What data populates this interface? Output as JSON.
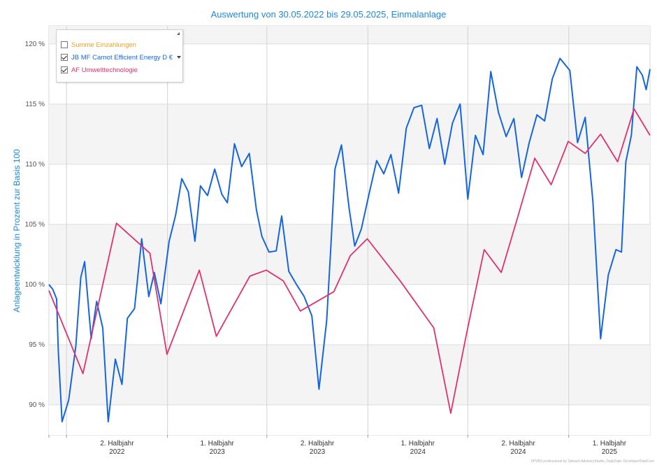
{
  "chart_data": {
    "type": "line",
    "title": "Auswertung von 30.05.2022 bis 29.05.2025, Einmalanlage",
    "ylabel": "Anlageentwicklung  in Prozent zur Basis 100",
    "ylim": [
      87.5,
      121.5
    ],
    "y_ticks": [
      90,
      95,
      100,
      105,
      110,
      115,
      120
    ],
    "y_tick_labels": [
      "90 %",
      "95 %",
      "100 %",
      "105 %",
      "110 %",
      "115 %",
      "120 %"
    ],
    "xlim": [
      "2022-05-30",
      "2025-05-29"
    ],
    "x_period_labels": [
      {
        "l1": "2. Halbjahr",
        "l2": "2022"
      },
      {
        "l1": "1. Halbjahr",
        "l2": "2023"
      },
      {
        "l1": "2. Halbjahr",
        "l2": "2023"
      },
      {
        "l1": "1. Halbjahr",
        "l2": "2024"
      },
      {
        "l1": "2. Halbjahr",
        "l2": "2024"
      },
      {
        "l1": "1. Halbjahr",
        "l2": "2025"
      }
    ],
    "grid": true,
    "legend_position": "top-left",
    "series": [
      {
        "name": "Summe Einzahlungen",
        "color": "#f0a020",
        "checked": false,
        "x": [],
        "y": []
      },
      {
        "name": "JB MF Carnot Efficient Energy D €",
        "color": "#1565e0",
        "checked": true,
        "x": [
          "2022-05-30",
          "2022-06-06",
          "2022-06-13",
          "2022-06-16",
          "2022-06-23",
          "2022-07-05",
          "2022-07-18",
          "2022-07-27",
          "2022-08-03",
          "2022-08-15",
          "2022-08-25",
          "2022-09-05",
          "2022-09-15",
          "2022-09-28",
          "2022-10-10",
          "2022-10-20",
          "2022-11-02",
          "2022-11-15",
          "2022-11-28",
          "2022-12-08",
          "2022-12-20",
          "2023-01-04",
          "2023-01-16",
          "2023-01-27",
          "2023-02-08",
          "2023-02-20",
          "2023-03-02",
          "2023-03-15",
          "2023-03-28",
          "2023-04-10",
          "2023-04-20",
          "2023-05-03",
          "2023-05-16",
          "2023-05-30",
          "2023-06-12",
          "2023-06-22",
          "2023-07-05",
          "2023-07-18",
          "2023-07-28",
          "2023-08-10",
          "2023-08-24",
          "2023-09-07",
          "2023-09-21",
          "2023-10-04",
          "2023-10-18",
          "2023-10-26",
          "2023-11-02",
          "2023-11-14",
          "2023-11-28",
          "2023-12-08",
          "2023-12-20",
          "2024-01-04",
          "2024-01-17",
          "2024-01-30",
          "2024-02-12",
          "2024-02-26",
          "2024-03-11",
          "2024-03-25",
          "2024-04-08",
          "2024-04-22",
          "2024-05-06",
          "2024-05-20",
          "2024-06-03",
          "2024-06-17",
          "2024-07-01",
          "2024-07-15",
          "2024-07-29",
          "2024-08-12",
          "2024-08-26",
          "2024-09-09",
          "2024-09-23",
          "2024-10-07",
          "2024-10-21",
          "2024-11-04",
          "2024-11-18",
          "2024-12-02",
          "2024-12-16",
          "2025-01-03",
          "2025-01-17",
          "2025-01-31",
          "2025-02-14",
          "2025-02-28",
          "2025-03-14",
          "2025-03-28",
          "2025-04-07",
          "2025-04-15",
          "2025-04-25",
          "2025-05-05",
          "2025-05-15",
          "2025-05-22",
          "2025-05-29"
        ],
        "y": [
          100,
          99.6,
          98.8,
          94.5,
          88.6,
          90.4,
          94.9,
          100.6,
          101.9,
          95.5,
          98.6,
          96.4,
          88.6,
          93.8,
          91.7,
          97.2,
          98.0,
          103.8,
          99.0,
          101.0,
          98.4,
          103.6,
          105.8,
          108.8,
          107.7,
          103.6,
          108.2,
          107.4,
          109.6,
          107.5,
          106.8,
          111.7,
          109.8,
          110.9,
          106.2,
          104.0,
          102.7,
          102.8,
          105.7,
          101.1,
          100.0,
          99.0,
          97.4,
          91.3,
          97.0,
          103.5,
          109.6,
          111.6,
          106.3,
          103.2,
          104.6,
          107.7,
          110.3,
          109.2,
          110.8,
          107.6,
          113.0,
          114.7,
          114.9,
          111.3,
          113.8,
          110.0,
          113.4,
          115.0,
          107.1,
          112.4,
          110.8,
          117.7,
          114.3,
          112.3,
          113.8,
          108.9,
          111.8,
          114.1,
          113.6,
          117.1,
          118.8,
          117.8,
          111.8,
          113.9,
          106.9,
          95.5,
          100.8,
          102.9,
          102.7,
          110.2,
          112.4,
          118.1,
          117.4,
          116.2,
          117.9
        ]
      },
      {
        "name": "AF Umwelttechnologie",
        "color": "#e0306e",
        "checked": true,
        "x": [
          "2022-05-30",
          "2022-07-31",
          "2022-09-30",
          "2022-11-30",
          "2022-12-31",
          "2023-02-28",
          "2023-03-31",
          "2023-05-31",
          "2023-06-30",
          "2023-07-31",
          "2023-08-31",
          "2023-10-31",
          "2023-11-30",
          "2023-12-31",
          "2024-02-29",
          "2024-04-30",
          "2024-05-31",
          "2024-06-30",
          "2024-07-31",
          "2024-08-31",
          "2024-09-30",
          "2024-10-31",
          "2024-11-30",
          "2024-12-31",
          "2025-01-31",
          "2025-02-28",
          "2025-03-31",
          "2025-04-30",
          "2025-05-29"
        ],
        "y": [
          99.5,
          92.6,
          105.1,
          102.6,
          94.2,
          101.2,
          95.7,
          100.7,
          101.2,
          100.3,
          97.8,
          99.4,
          102.4,
          103.8,
          100.3,
          96.4,
          89.3,
          96.2,
          102.9,
          101.0,
          105.6,
          110.5,
          108.3,
          111.9,
          110.9,
          112.5,
          110.2,
          114.6,
          112.4
        ]
      }
    ]
  },
  "credit": "XPVBS professional by Sisbach AdvisoryStudio, DailyDate: DeveloperDataCore"
}
